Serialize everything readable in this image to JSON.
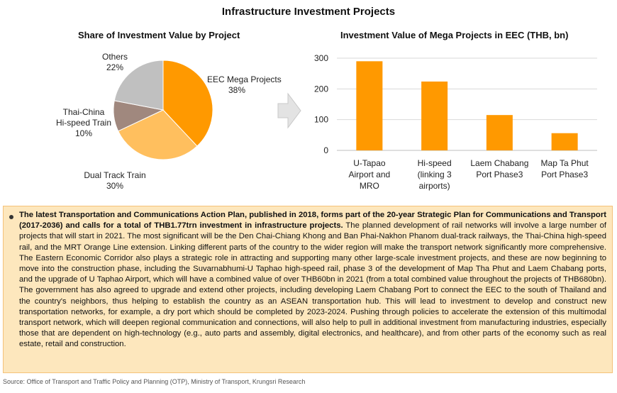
{
  "title": "Infrastructure Investment Projects",
  "pie_title": "Share of Investment Value by Project",
  "bar_title": "Investment Value of Mega Projects in EEC (THB, bn)",
  "chart_data": [
    {
      "type": "pie",
      "title": "Share of Investment Value by Project",
      "slices": [
        {
          "label": "EEC Mega Projects",
          "value": 38,
          "pct": "38%",
          "color": "#ff9900"
        },
        {
          "label": "Dual Track Train",
          "value": 30,
          "pct": "30%",
          "color": "#ffbf5e"
        },
        {
          "label": "Thai-China Hi-speed Train",
          "value": 10,
          "pct": "10%",
          "color": "#a0887e"
        },
        {
          "label": "Others",
          "value": 22,
          "pct": "22%",
          "color": "#c0c0c0"
        }
      ]
    },
    {
      "type": "bar",
      "title": "Investment Value of Mega Projects in EEC (THB, bn)",
      "categories": [
        "U-Tapao Airport and MRO",
        "Hi-speed (linking 3 airports)",
        "Laem Chabang Port Phase3",
        "Map Ta Phut Port Phase3"
      ],
      "category_lines": [
        [
          "U-Tapao",
          "Airport and",
          "MRO"
        ],
        [
          "Hi-speed",
          "(linking 3",
          "airports)"
        ],
        [
          "Laem Chabang",
          "Port Phase3"
        ],
        [
          "Map Ta Phut",
          "Port Phase3"
        ]
      ],
      "values": [
        290,
        224,
        115,
        56
      ],
      "ylim": [
        0,
        300
      ],
      "yticks": [
        0,
        100,
        200,
        300
      ],
      "grid": true,
      "color": "#ff9900"
    }
  ],
  "body": {
    "bold_text": "The latest Transportation and Communications Action Plan, published in 2018, forms part of the 20-year Strategic Plan for Communications and Transport (2017-2036) and calls for a total of THB1.77trn investment in infrastructure projects.",
    "text": " The planned development of rail networks will involve a large number of projects that will start in 2021. The most significant will be the Den Chai-Chiang Khong and Ban Phai-Nakhon Phanom dual-track railways, the Thai-China high-speed rail, and the MRT Orange Line extension. Linking different parts of the country to the wider region will make the transport network significantly more comprehensive. The Eastern Economic Corridor also plays a strategic role in attracting and supporting many other large-scale investment projects, and these are now beginning to move into the construction phase, including the Suvarnabhumi-U Taphao high-speed rail, phase 3 of the development of Map Tha Phut and Laem Chabang ports, and the upgrade of U Taphao Airport, which will have a combined value of over THB60bn in 2021 (from a total combined value throughout the projects of THB680bn). The government has also agreed to upgrade and extend other projects, including developing Laem Chabang Port to connect the EEC to the south of Thailand and the country's neighbors, thus helping to establish the country as an ASEAN transportation hub. This will lead to investment to develop and construct new transportation networks, for example, a dry port which should be completed by 2023-2024. Pushing through policies to accelerate the extension of this multimodal transport network, which will deepen regional communication and connections, will also help to pull in additional investment from manufacturing industries, especially those that are dependent on high-technology (e.g., auto parts and assembly, digital electronics, and healthcare), and from other parts of the economy such as real estate, retail and construction."
  },
  "source": "Source: Office of Transport and Traffic Policy and Planning (OTP), Ministry of Transport, Krungsri Research"
}
